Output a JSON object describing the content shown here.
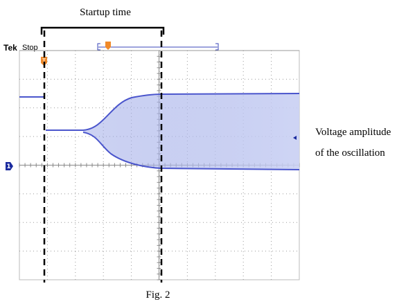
{
  "annotation": {
    "startup": "Startup time",
    "amplitude_line1": "Voltage amplitude",
    "amplitude_line2": "of the oscillation",
    "caption": "Fig. 2"
  },
  "scope": {
    "brand": "Tek",
    "status": "Stop",
    "channel_marker": "1",
    "trigger_marker": "T"
  }
}
